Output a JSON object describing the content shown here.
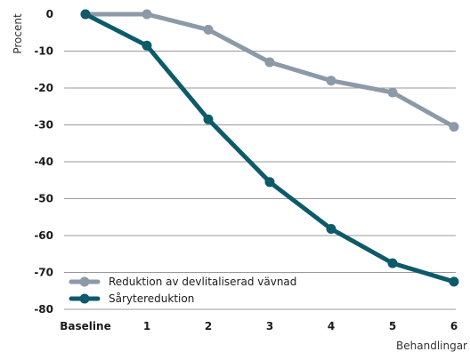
{
  "chart_data": {
    "type": "line",
    "title": "",
    "ylabel": "Procent",
    "xlabel": "Behandlingar",
    "categories": [
      "Baseline",
      "1",
      "2",
      "3",
      "4",
      "5",
      "6"
    ],
    "ylim": [
      -80,
      0
    ],
    "yticks": [
      "0",
      "-10",
      "-20",
      "-30",
      "-40",
      "-50",
      "-60",
      "-70",
      "-80"
    ],
    "grid": true,
    "legend_position": "bottom-left",
    "series": [
      {
        "name": "Reduktion av devlitaliserad vävnad",
        "color": "#8c9aa8",
        "values": [
          0,
          0,
          -4.2,
          -13,
          -18,
          -21.2,
          -30.5
        ]
      },
      {
        "name": "Sårytereduktion",
        "color": "#0d5a6a",
        "values": [
          0,
          -8.5,
          -28.5,
          -45.5,
          -58.2,
          -67.5,
          -72.5
        ]
      }
    ]
  }
}
